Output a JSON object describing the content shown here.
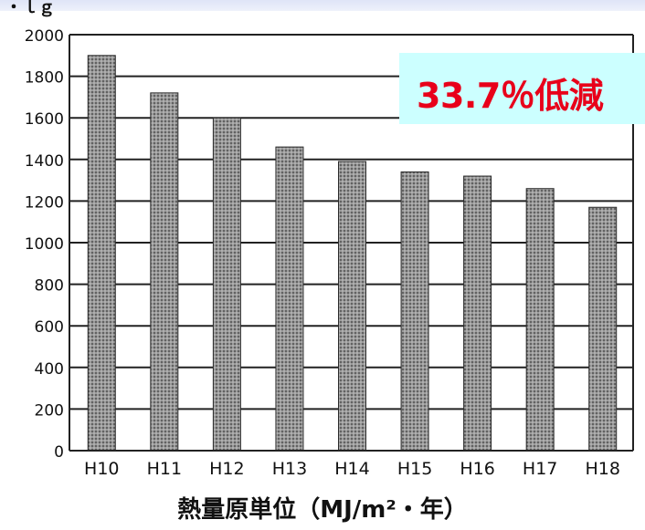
{
  "slide": {
    "top_glyph": "・ｌｇ",
    "callout_text": "33.7％低減",
    "caption": "熱量原単位（MJ/m²・年）"
  },
  "colors": {
    "callout_bg": "#ccffff",
    "callout_text": "#e8001a",
    "bar_fill": "#8a8a8a",
    "grid": "#222222"
  },
  "chart_data": {
    "type": "bar",
    "categories": [
      "H10",
      "H11",
      "H12",
      "H13",
      "H14",
      "H15",
      "H16",
      "H17",
      "H18"
    ],
    "values": [
      1900,
      1720,
      1600,
      1460,
      1390,
      1340,
      1320,
      1260,
      1170
    ],
    "title": "",
    "xlabel": "熱量原単位（MJ/m²・年）",
    "ylabel": "",
    "ylim": [
      0,
      2000
    ],
    "yticks": [
      0,
      200,
      400,
      600,
      800,
      1000,
      1200,
      1400,
      1600,
      1800,
      2000
    ],
    "grid": true,
    "legend": "none"
  }
}
